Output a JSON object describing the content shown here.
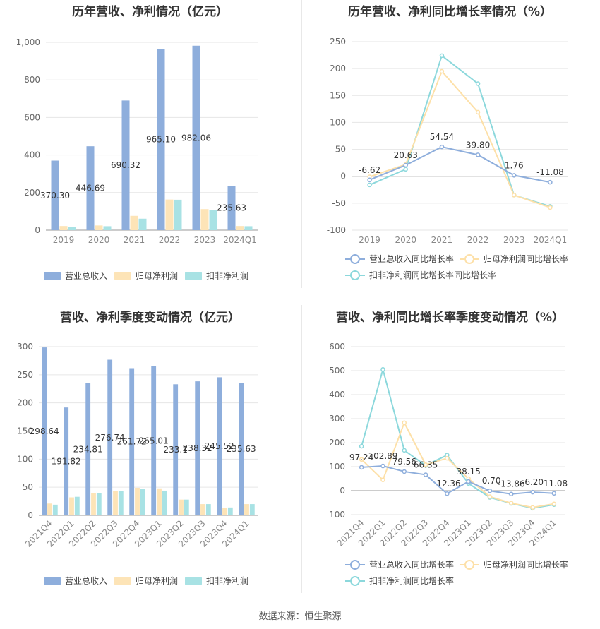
{
  "source": "数据来源：恒生聚源",
  "colors": {
    "revenue": "#8eaedc",
    "net_profit": "#fde4b7",
    "deducted_profit": "#a8e2e4",
    "rev_line": "#8eaedc",
    "np_line": "#fde0a8",
    "dnp_line": "#8cd8dc"
  },
  "chart_data": [
    {
      "type": "bar",
      "title": "历年营收、净利情况（亿元）",
      "categories": [
        "2019",
        "2020",
        "2021",
        "2022",
        "2023",
        "2024Q1"
      ],
      "ylim": [
        0,
        1000
      ],
      "yticks": [
        0,
        200,
        400,
        600,
        800,
        1000
      ],
      "ytick_labels": [
        "0",
        "200",
        "400",
        "600",
        "800",
        "1,000"
      ],
      "grid": true,
      "legend": "bottom",
      "series": [
        {
          "name": "营业总收入",
          "values": [
            370.3,
            446.69,
            690.32,
            965.1,
            982.06,
            235.63
          ],
          "labels": [
            "370.30",
            "446.69",
            "690.32",
            "965.10",
            "982.06",
            "235.63"
          ]
        },
        {
          "name": "归母净利润",
          "values": [
            22,
            25,
            76,
            163,
            112,
            22
          ]
        },
        {
          "name": "扣非净利润",
          "values": [
            18,
            21,
            61,
            162,
            106,
            21
          ]
        }
      ]
    },
    {
      "type": "line",
      "title": "历年营收、净利同比增长率情况（%）",
      "categories": [
        "2019",
        "2020",
        "2021",
        "2022",
        "2023",
        "2024Q1"
      ],
      "ylim": [
        -100,
        250
      ],
      "yticks": [
        -100,
        -50,
        0,
        50,
        100,
        150,
        200,
        250
      ],
      "ytick_labels": [
        "-100",
        "-50",
        "0",
        "50",
        "100",
        "150",
        "200",
        "250"
      ],
      "grid": true,
      "legend": "bottom",
      "series": [
        {
          "name": "营业总收入同比增长率",
          "values": [
            -6.62,
            20.63,
            54.54,
            39.8,
            1.76,
            -11.08
          ],
          "labels": [
            "-6.62",
            "20.63",
            "54.54",
            "39.80",
            "1.76",
            "-11.08"
          ]
        },
        {
          "name": "归母净利润同比增长率",
          "values": [
            -1,
            22,
            195,
            119,
            -35,
            -58
          ]
        },
        {
          "name": "扣非净利润同比增长率同比增长率",
          "values": [
            -16,
            13,
            224,
            172,
            -35,
            -56
          ]
        }
      ]
    },
    {
      "type": "bar",
      "title": "营收、净利季度变动情况（亿元）",
      "categories": [
        "2021Q4",
        "2022Q1",
        "2022Q2",
        "2022Q3",
        "2022Q4",
        "2023Q1",
        "2023Q2",
        "2023Q3",
        "2023Q4",
        "2024Q1"
      ],
      "ylim": [
        0,
        300
      ],
      "yticks": [
        0,
        50,
        100,
        150,
        200,
        250,
        300
      ],
      "ytick_labels": [
        "0",
        "50",
        "100",
        "150",
        "200",
        "250",
        "300"
      ],
      "grid": true,
      "legend": "bottom",
      "series": [
        {
          "name": "营业总收入",
          "values": [
            298.64,
            191.82,
            234.81,
            276.74,
            261.72,
            265.01,
            233.1,
            238.32,
            245.52,
            235.63
          ],
          "labels": [
            "298.64",
            "191.82",
            "234.81",
            "276.74",
            "261.72",
            "265.01",
            "233.1",
            "238.32",
            "245.52",
            "235.63"
          ]
        },
        {
          "name": "归母净利润",
          "values": [
            21,
            32,
            39,
            43,
            49,
            48,
            28,
            20,
            13,
            20
          ]
        },
        {
          "name": "扣非净利润",
          "values": [
            19,
            33,
            39,
            43,
            47,
            44,
            28,
            20,
            14,
            20
          ]
        }
      ]
    },
    {
      "type": "line",
      "title": "营收、净利同比增长率季度变动情况（%）",
      "categories": [
        "2021Q4",
        "2022Q1",
        "2022Q2",
        "2022Q3",
        "2022Q4",
        "2023Q1",
        "2023Q2",
        "2023Q3",
        "2023Q4",
        "2024Q1"
      ],
      "ylim": [
        -100,
        600
      ],
      "yticks": [
        -100,
        0,
        100,
        200,
        300,
        400,
        500,
        600
      ],
      "ytick_labels": [
        "-100",
        "0",
        "100",
        "200",
        "300",
        "400",
        "500",
        "600"
      ],
      "grid": true,
      "legend": "bottom",
      "series": [
        {
          "name": "营业总收入同比增长率",
          "values": [
            97.24,
            102.89,
            79.56,
            66.35,
            -12.36,
            38.15,
            -0.7,
            -13.86,
            -6.2,
            -11.08
          ],
          "labels": [
            "97.24",
            "102.89",
            "79.56",
            "66.35",
            "-12.36",
            "38.15",
            "-0.70",
            "-13.86",
            "-6.20",
            "-11.08"
          ]
        },
        {
          "name": "归母净利润同比增长率",
          "values": [
            130,
            45,
            283,
            108,
            135,
            50,
            -25,
            -52,
            -70,
            -55
          ]
        },
        {
          "name": "扣非净利润同比增长率",
          "values": [
            185,
            505,
            168,
            105,
            148,
            30,
            -28,
            -53,
            -73,
            -58
          ]
        }
      ]
    }
  ]
}
